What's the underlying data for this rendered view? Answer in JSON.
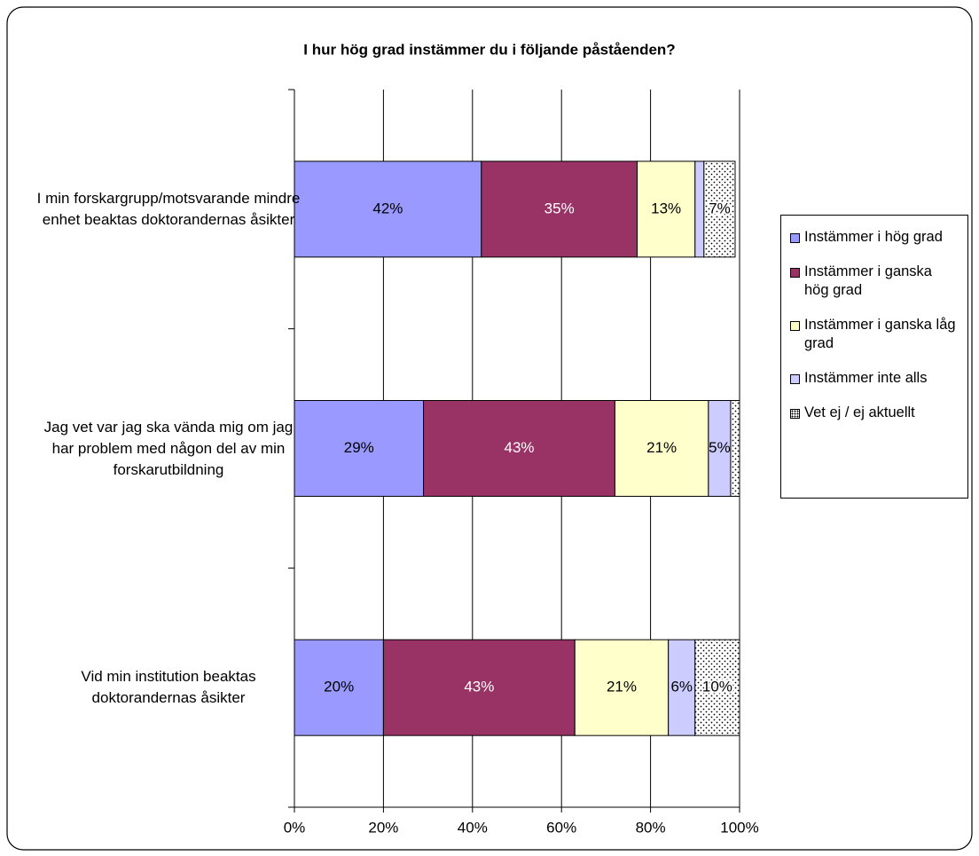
{
  "chart_data": {
    "type": "stacked-bar-horizontal",
    "title": "I hur hög grad instämmer du i följande påståenden?",
    "categories": [
      "I min forskargrupp/motsvarande mindre enhet beaktas doktorandernas åsikter",
      "Jag vet var jag ska vända mig om jag har problem med någon del av min forskarutbildning",
      "Vid min institution beaktas doktorandernas åsikter"
    ],
    "series": [
      {
        "name": "Instämmer i hög grad",
        "color": "#9999ff",
        "label_color": "#000000",
        "values": [
          42,
          29,
          20
        ],
        "value_labels": [
          "42%",
          "29%",
          "20%"
        ]
      },
      {
        "name": "Instämmer i ganska hög grad",
        "color": "#993366",
        "label_color": "#ffffff",
        "values": [
          35,
          43,
          43
        ],
        "value_labels": [
          "35%",
          "43%",
          "43%"
        ]
      },
      {
        "name": "Instämmer i ganska låg grad",
        "color": "#ffffcc",
        "label_color": "#000000",
        "values": [
          13,
          21,
          21
        ],
        "value_labels": [
          "13%",
          "21%",
          "21%"
        ]
      },
      {
        "name": "Instämmer inte alls",
        "color": "#ccccff",
        "label_color": "#000000",
        "values": [
          2,
          5,
          6
        ],
        "value_labels": [
          null,
          "5%",
          "6%"
        ]
      },
      {
        "name": "Vet ej / ej aktuellt",
        "color": "dotted",
        "label_color": "#000000",
        "values": [
          7,
          2,
          10
        ],
        "value_labels": [
          "7%",
          null,
          "10%"
        ]
      }
    ],
    "xlim": [
      0,
      100
    ],
    "xticks": [
      {
        "value": 0,
        "label": "0%"
      },
      {
        "value": 20,
        "label": "20%"
      },
      {
        "value": 40,
        "label": "40%"
      },
      {
        "value": 60,
        "label": "60%"
      },
      {
        "value": 80,
        "label": "80%"
      },
      {
        "value": 100,
        "label": "100%"
      }
    ],
    "grid": true,
    "legend": "right"
  }
}
